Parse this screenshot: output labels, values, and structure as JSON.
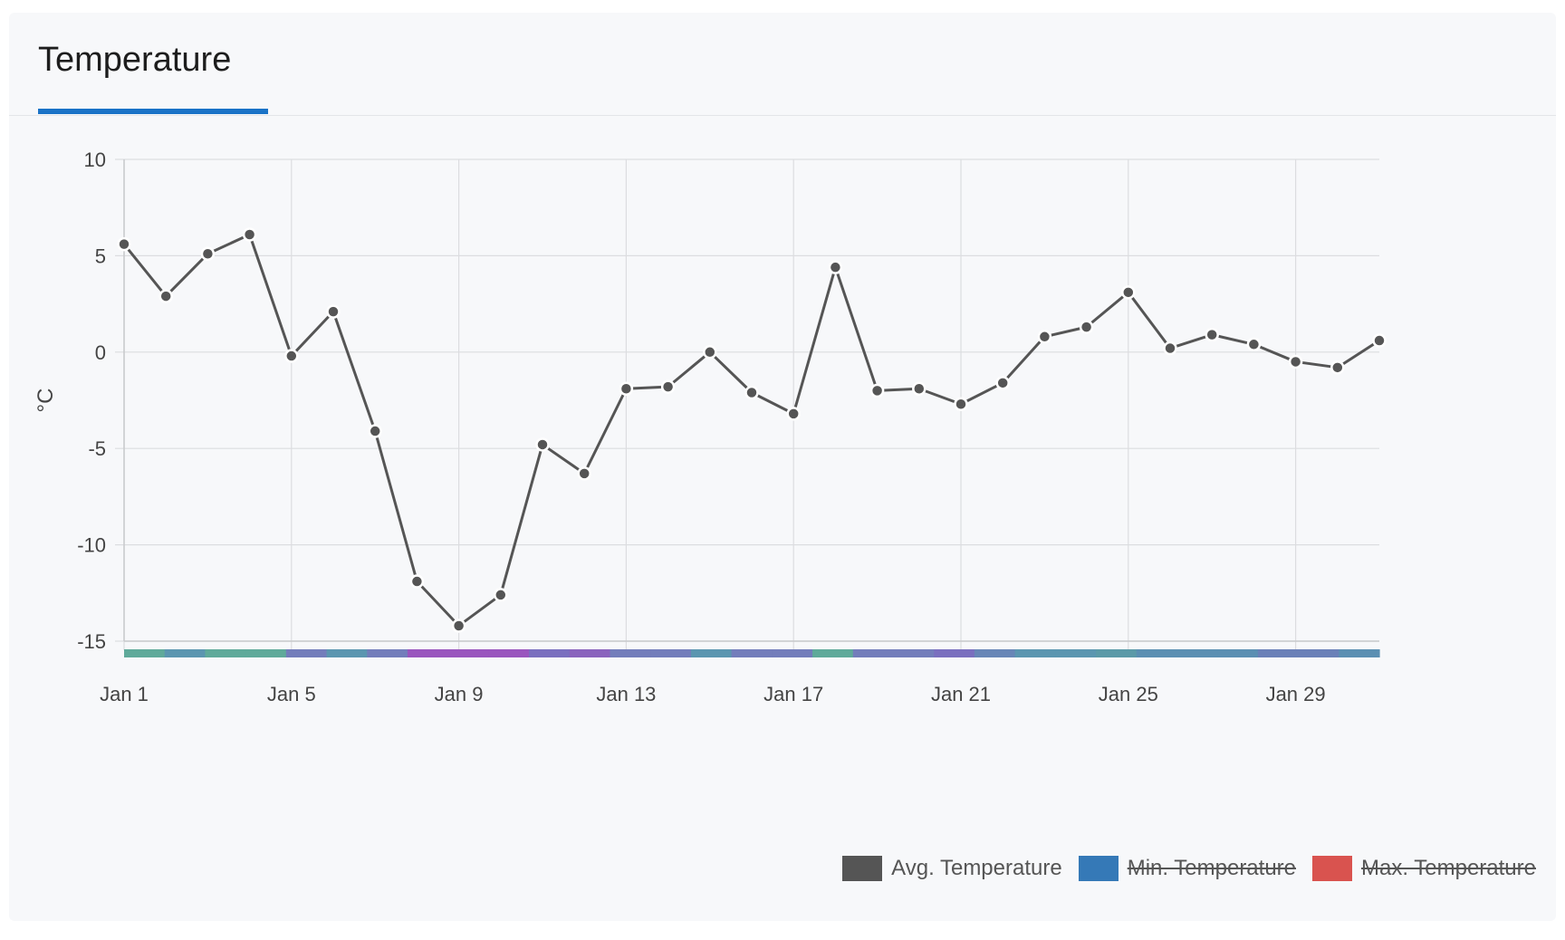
{
  "tab": {
    "label": "Temperature"
  },
  "colors": {
    "avg": "#555555",
    "min": "#3579b7",
    "max": "#d9534f",
    "accent": "#1a73c7",
    "grid": "#dcdde0"
  },
  "legend": [
    {
      "label": "Avg. Temperature",
      "color": "#555555",
      "hidden": false
    },
    {
      "label": "Min. Temperature",
      "color": "#3579b7",
      "hidden": true
    },
    {
      "label": "Max. Temperature",
      "color": "#d9534f",
      "hidden": true
    }
  ],
  "chart_data": {
    "type": "line",
    "ylabel": "°C",
    "ylim": [
      -15,
      10
    ],
    "yticks": [
      10,
      5,
      0,
      -5,
      -10,
      -15
    ],
    "ytick_labels": [
      "10",
      "5",
      "0",
      "-5",
      "-10",
      "-15"
    ],
    "xlim": [
      1,
      31
    ],
    "xticks": [
      1,
      5,
      9,
      13,
      17,
      21,
      25,
      29
    ],
    "xtick_labels": [
      "Jan 1",
      "Jan 5",
      "Jan 9",
      "Jan 13",
      "Jan 17",
      "Jan 21",
      "Jan 25",
      "Jan 29"
    ],
    "grid": true,
    "legend_position": "bottom-right",
    "series": [
      {
        "name": "Avg. Temperature",
        "x": [
          1,
          2,
          3,
          4,
          5,
          6,
          7,
          8,
          9,
          10,
          11,
          12,
          13,
          14,
          15,
          16,
          17,
          18,
          19,
          20,
          21,
          22,
          23,
          24,
          25,
          26,
          27,
          28,
          29,
          30,
          31
        ],
        "values": [
          5.6,
          2.9,
          5.1,
          6.1,
          -0.2,
          2.1,
          -4.1,
          -11.9,
          -14.2,
          -12.6,
          -4.8,
          -6.3,
          -1.9,
          -1.8,
          0.0,
          -2.1,
          -3.2,
          4.4,
          -2.0,
          -1.9,
          -2.7,
          -1.6,
          0.8,
          1.3,
          3.1,
          0.2,
          0.9,
          0.4,
          -0.5,
          -0.8,
          0.6
        ]
      }
    ],
    "color_strip": [
      "#5faa9a",
      "#5b96b0",
      "#5faa9a",
      "#5faa9a",
      "#737dbb",
      "#5b96b0",
      "#737dbb",
      "#9a55be",
      "#9a55be",
      "#9a55be",
      "#7a6fbf",
      "#8a63bd",
      "#737dbb",
      "#737dbb",
      "#5b96b0",
      "#737dbb",
      "#737dbb",
      "#5faa9a",
      "#737dbb",
      "#737dbb",
      "#7a6fbf",
      "#6886b7",
      "#5b96b0",
      "#5b96b0",
      "#5b9aa8",
      "#5b8fb2",
      "#5b8fb2",
      "#5b8fb2",
      "#6a80b8",
      "#6a80b8",
      "#5b8fb2"
    ]
  }
}
